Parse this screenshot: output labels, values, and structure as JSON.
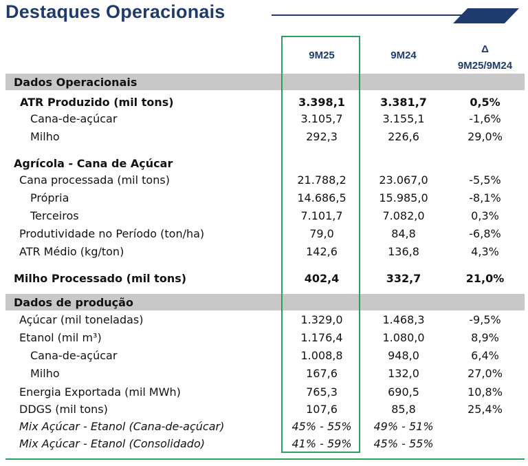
{
  "title": "Destaques Operacionais",
  "columns": {
    "c1": "9M25",
    "c2": "9M24",
    "c3_top": "Δ",
    "c3_bottom": "9M25/9M24"
  },
  "sections": {
    "s1": "Dados Operacionais",
    "s2": "Dados de produção"
  },
  "rows": [
    {
      "label": "ATR Produzido (mil tons)",
      "v1": "3.398,1",
      "v2": "3.381,7",
      "v3": "0,5%"
    },
    {
      "label": "Cana-de-açúcar",
      "v1": "3.105,7",
      "v2": "3.155,1",
      "v3": "-1,6%"
    },
    {
      "label": "Milho",
      "v1": "292,3",
      "v2": "226,6",
      "v3": "29,0%"
    },
    {
      "label": "Agrícola - Cana de Açúcar",
      "v1": "",
      "v2": "",
      "v3": ""
    },
    {
      "label": "Cana processada (mil tons)",
      "v1": "21.788,2",
      "v2": "23.067,0",
      "v3": "-5,5%"
    },
    {
      "label": "Própria",
      "v1": "14.686,5",
      "v2": "15.985,0",
      "v3": "-8,1%"
    },
    {
      "label": "Terceiros",
      "v1": "7.101,7",
      "v2": "7.082,0",
      "v3": "0,3%"
    },
    {
      "label": "Produtividade no Período (ton/ha)",
      "v1": "79,0",
      "v2": "84,8",
      "v3": "-6,8%"
    },
    {
      "label": "ATR Médio (kg/ton)",
      "v1": "142,6",
      "v2": "136,8",
      "v3": "4,3%"
    },
    {
      "label": "Milho Processado (mil tons)",
      "v1": "402,4",
      "v2": "332,7",
      "v3": "21,0%"
    },
    {
      "label": "Açúcar (mil toneladas)",
      "v1": "1.329,0",
      "v2": "1.468,3",
      "v3": "-9,5%"
    },
    {
      "label": "Etanol (mil m³)",
      "v1": "1.176,4",
      "v2": "1.080,0",
      "v3": "8,9%"
    },
    {
      "label": "Cana-de-açúcar",
      "v1": "1.008,8",
      "v2": "948,0",
      "v3": "6,4%"
    },
    {
      "label": "Milho",
      "v1": "167,6",
      "v2": "132,0",
      "v3": "27,0%"
    },
    {
      "label": "Energia Exportada (mil MWh)",
      "v1": "765,3",
      "v2": "690,5",
      "v3": "10,8%"
    },
    {
      "label": "DDGS (mil tons)",
      "v1": "107,6",
      "v2": "85,8",
      "v3": "25,4%"
    },
    {
      "label": "Mix Açúcar - Etanol (Cana-de-açúcar)",
      "v1": "45% - 55%",
      "v2": "49% - 51%",
      "v3": ""
    },
    {
      "label": "Mix Açúcar - Etanol (Consolidado)",
      "v1": "41% - 59%",
      "v2": "45% - 55%",
      "v3": ""
    }
  ]
}
